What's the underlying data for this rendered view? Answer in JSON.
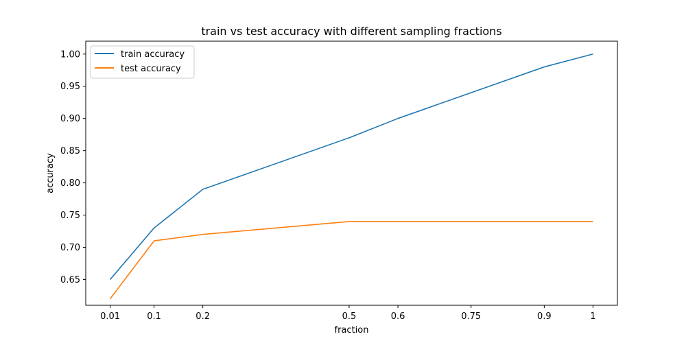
{
  "chart_data": {
    "type": "line",
    "title": "train vs test accuracy with different sampling fractions",
    "xlabel": "fraction",
    "ylabel": "accuracy",
    "x": [
      0.01,
      0.1,
      0.2,
      0.5,
      0.6,
      0.75,
      0.9,
      1
    ],
    "x_tick_labels": [
      "0.01",
      "0.1",
      "0.2",
      "0.5",
      "0.6",
      "0.75",
      "0.9",
      "1"
    ],
    "xlim": [
      -0.04,
      1.05
    ],
    "ylim": [
      0.61,
      1.02
    ],
    "y_ticks": [
      0.65,
      0.7,
      0.75,
      0.8,
      0.85,
      0.9,
      0.95,
      1.0
    ],
    "y_tick_labels": [
      "0.65",
      "0.70",
      "0.75",
      "0.80",
      "0.85",
      "0.90",
      "0.95",
      "1.00"
    ],
    "grid": false,
    "legend_position": "top-left",
    "series": [
      {
        "name": "train accuracy",
        "color": "#1f77b4",
        "values": [
          0.65,
          0.73,
          0.79,
          0.87,
          0.9,
          0.94,
          0.98,
          1.0
        ]
      },
      {
        "name": "test accuracy",
        "color": "#ff7f0e",
        "values": [
          0.62,
          0.71,
          0.72,
          0.74,
          0.74,
          0.74,
          0.74,
          0.74
        ]
      }
    ]
  }
}
